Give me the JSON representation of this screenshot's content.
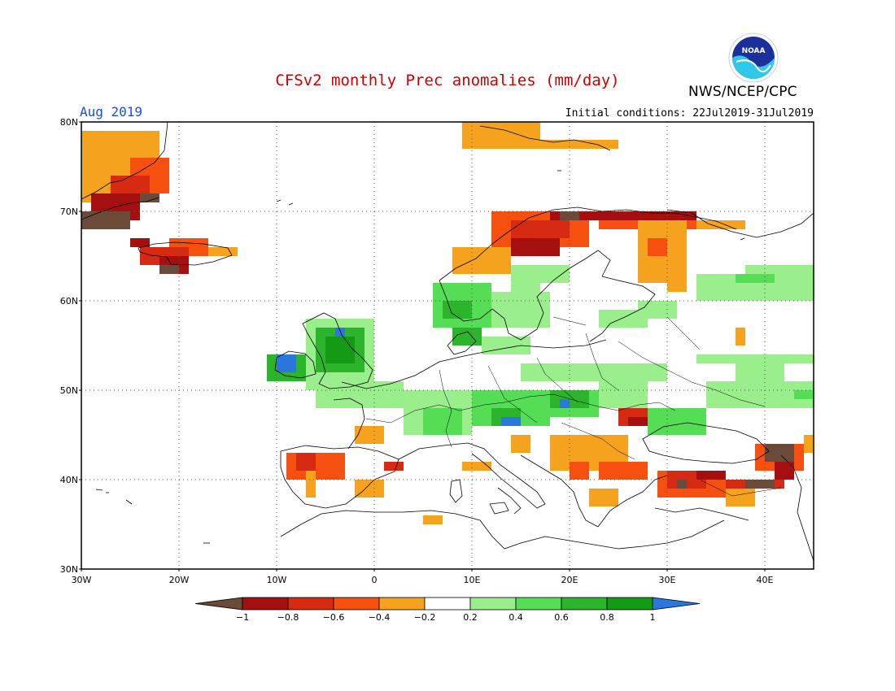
{
  "header": {
    "title": "CFSv2 monthly Prec anomalies (mm/day)",
    "agency": "NWS/NCEP/CPC",
    "logo_text": "NOAA",
    "month": "Aug 2019",
    "initial_conditions": "Initial conditions: 22Jul2019-31Jul2019"
  },
  "colors": {
    "title": "#cc0000",
    "month": "#1a4fe0",
    "frame": "#000000",
    "grid": "#555555",
    "coast": "#000000"
  },
  "map": {
    "lon_range": [
      -30,
      45
    ],
    "lat_range": [
      30,
      80
    ],
    "lat_ticks": [
      "30N",
      "40N",
      "50N",
      "60N",
      "70N",
      "80N"
    ],
    "lat_tick_values": [
      30,
      40,
      50,
      60,
      70,
      80
    ],
    "lon_ticks": [
      "30W",
      "20W",
      "10W",
      "0",
      "10E",
      "20E",
      "30E",
      "40E"
    ],
    "lon_tick_values": [
      -30,
      -20,
      -10,
      0,
      10,
      20,
      30,
      40
    ]
  },
  "colorbar": {
    "tick_labels": [
      "−1",
      "−0.8",
      "−0.6",
      "−0.4",
      "−0.2",
      "0.2",
      "0.4",
      "0.6",
      "0.8",
      "1"
    ],
    "colors": [
      "#6b4a3a",
      "#a50f0f",
      "#d62a12",
      "#f5500f",
      "#f5a21f",
      "#ffffff",
      "#9aee8c",
      "#55dd55",
      "#2cb42c",
      "#159a15",
      "#2a78dd"
    ]
  },
  "anomaly_cells": {
    "cell_size_deg": 1,
    "classes": {
      "-5": "#6b4a3a",
      "-4": "#a50f0f",
      "-3": "#d62a12",
      "-2": "#f5500f",
      "-1": "#f5a21f",
      "1": "#9aee8c",
      "2": "#55dd55",
      "3": "#2cb42c",
      "4": "#159a15",
      "5": "#2a78dd"
    },
    "rects": [
      {
        "lon": [
          -30,
          -22
        ],
        "lat": [
          71,
          79
        ],
        "c": -1
      },
      {
        "lon": [
          -25,
          -21
        ],
        "lat": [
          72,
          76
        ],
        "c": -2
      },
      {
        "lon": [
          -27,
          -23
        ],
        "lat": [
          71,
          74
        ],
        "c": -3
      },
      {
        "lon": [
          -29,
          -24
        ],
        "lat": [
          69,
          72
        ],
        "c": -4
      },
      {
        "lon": [
          -30,
          -25
        ],
        "lat": [
          68,
          70
        ],
        "c": -5
      },
      {
        "lon": [
          -24,
          -22
        ],
        "lat": [
          71,
          72
        ],
        "c": -5
      },
      {
        "lon": [
          -22,
          -14
        ],
        "lat": [
          65,
          66
        ],
        "c": -1
      },
      {
        "lon": [
          -21,
          -17
        ],
        "lat": [
          65,
          67
        ],
        "c": -2
      },
      {
        "lon": [
          -24,
          -19
        ],
        "lat": [
          64,
          66
        ],
        "c": -3
      },
      {
        "lon": [
          -22,
          -19
        ],
        "lat": [
          63,
          65
        ],
        "c": -4
      },
      {
        "lon": [
          -22,
          -20
        ],
        "lat": [
          63,
          64
        ],
        "c": -5
      },
      {
        "lon": [
          -25,
          -23
        ],
        "lat": [
          66,
          67
        ],
        "c": -4
      },
      {
        "lon": [
          9,
          17
        ],
        "lat": [
          77,
          80
        ],
        "c": -1
      },
      {
        "lon": [
          17,
          25
        ],
        "lat": [
          77,
          78
        ],
        "c": -1
      },
      {
        "lon": [
          8,
          14
        ],
        "lat": [
          63,
          66
        ],
        "c": -1
      },
      {
        "lon": [
          12,
          22
        ],
        "lat": [
          66,
          70
        ],
        "c": -2
      },
      {
        "lon": [
          14,
          20
        ],
        "lat": [
          67,
          69
        ],
        "c": -3
      },
      {
        "lon": [
          14,
          19
        ],
        "lat": [
          65,
          67
        ],
        "c": -4
      },
      {
        "lon": [
          18,
          22
        ],
        "lat": [
          69,
          70
        ],
        "c": -4
      },
      {
        "lon": [
          19,
          21
        ],
        "lat": [
          69,
          70
        ],
        "c": -5
      },
      {
        "lon": [
          21,
          33
        ],
        "lat": [
          69,
          70
        ],
        "c": -4
      },
      {
        "lon": [
          23,
          34
        ],
        "lat": [
          68,
          69
        ],
        "c": -2
      },
      {
        "lon": [
          27,
          32
        ],
        "lat": [
          62,
          69
        ],
        "c": -1
      },
      {
        "lon": [
          28,
          30
        ],
        "lat": [
          65,
          67
        ],
        "c": -2
      },
      {
        "lon": [
          33,
          38
        ],
        "lat": [
          68,
          69
        ],
        "c": -1
      },
      {
        "lon": [
          30,
          32
        ],
        "lat": [
          61,
          62
        ],
        "c": -1
      },
      {
        "lon": [
          6,
          12
        ],
        "lat": [
          57,
          62
        ],
        "c": 2
      },
      {
        "lon": [
          7,
          10
        ],
        "lat": [
          58,
          60
        ],
        "c": 3
      },
      {
        "lon": [
          12,
          18
        ],
        "lat": [
          57,
          61
        ],
        "c": 1
      },
      {
        "lon": [
          8,
          11
        ],
        "lat": [
          55,
          57
        ],
        "c": 3
      },
      {
        "lon": [
          11,
          16
        ],
        "lat": [
          54,
          56
        ],
        "c": 1
      },
      {
        "lon": [
          14,
          17
        ],
        "lat": [
          60,
          64
        ],
        "c": 1
      },
      {
        "lon": [
          17,
          20
        ],
        "lat": [
          62,
          64
        ],
        "c": 1
      },
      {
        "lon": [
          33,
          38
        ],
        "lat": [
          60,
          63
        ],
        "c": 1
      },
      {
        "lon": [
          38,
          45
        ],
        "lat": [
          60,
          64
        ],
        "c": 1
      },
      {
        "lon": [
          37,
          41
        ],
        "lat": [
          62,
          63
        ],
        "c": 2
      },
      {
        "lon": [
          23,
          28
        ],
        "lat": [
          57,
          59
        ],
        "c": 1
      },
      {
        "lon": [
          27,
          31
        ],
        "lat": [
          58,
          60
        ],
        "c": 1
      },
      {
        "lon": [
          -7,
          0
        ],
        "lat": [
          50,
          58
        ],
        "c": 1
      },
      {
        "lon": [
          -6,
          -1
        ],
        "lat": [
          52,
          57
        ],
        "c": 3
      },
      {
        "lon": [
          -5,
          -2
        ],
        "lat": [
          53,
          56
        ],
        "c": 4
      },
      {
        "lon": [
          -4,
          -3
        ],
        "lat": [
          56,
          57
        ],
        "c": 5
      },
      {
        "lon": [
          -11,
          -7
        ],
        "lat": [
          51,
          54
        ],
        "c": 3
      },
      {
        "lon": [
          -10,
          -8
        ],
        "lat": [
          52,
          54
        ],
        "c": 5
      },
      {
        "lon": [
          -6,
          3
        ],
        "lat": [
          48,
          51
        ],
        "c": 1
      },
      {
        "lon": [
          3,
          10
        ],
        "lat": [
          45,
          50
        ],
        "c": 1
      },
      {
        "lon": [
          5,
          9
        ],
        "lat": [
          45,
          48
        ],
        "c": 2
      },
      {
        "lon": [
          10,
          18
        ],
        "lat": [
          46,
          50
        ],
        "c": 2
      },
      {
        "lon": [
          12,
          15
        ],
        "lat": [
          46,
          48
        ],
        "c": 3
      },
      {
        "lon": [
          13,
          15
        ],
        "lat": [
          46,
          47
        ],
        "c": 5
      },
      {
        "lon": [
          15,
          23
        ],
        "lat": [
          47,
          50
        ],
        "c": 2
      },
      {
        "lon": [
          18,
          22
        ],
        "lat": [
          48,
          50
        ],
        "c": 3
      },
      {
        "lon": [
          19,
          20
        ],
        "lat": [
          48,
          49
        ],
        "c": 5
      },
      {
        "lon": [
          23,
          28
        ],
        "lat": [
          48,
          51
        ],
        "c": 1
      },
      {
        "lon": [
          28,
          34
        ],
        "lat": [
          45,
          48
        ],
        "c": 2
      },
      {
        "lon": [
          15,
          21
        ],
        "lat": [
          51,
          53
        ],
        "c": 1
      },
      {
        "lon": [
          21,
          30
        ],
        "lat": [
          51,
          53
        ],
        "c": 1
      },
      {
        "lon": [
          34,
          45
        ],
        "lat": [
          48,
          51
        ],
        "c": 1
      },
      {
        "lon": [
          37,
          42
        ],
        "lat": [
          51,
          53
        ],
        "c": 1
      },
      {
        "lon": [
          33,
          45
        ],
        "lat": [
          53,
          54
        ],
        "c": 1
      },
      {
        "lon": [
          43,
          45
        ],
        "lat": [
          49,
          50
        ],
        "c": 2
      },
      {
        "lon": [
          -2,
          1
        ],
        "lat": [
          44,
          46
        ],
        "c": -1
      },
      {
        "lon": [
          -9,
          -3
        ],
        "lat": [
          40,
          43
        ],
        "c": -2
      },
      {
        "lon": [
          -7,
          -6
        ],
        "lat": [
          38,
          42
        ],
        "c": -1
      },
      {
        "lon": [
          -8,
          -6
        ],
        "lat": [
          41,
          43
        ],
        "c": -3
      },
      {
        "lon": [
          -2,
          1
        ],
        "lat": [
          38,
          40
        ],
        "c": -1
      },
      {
        "lon": [
          1,
          3
        ],
        "lat": [
          41,
          42
        ],
        "c": -3
      },
      {
        "lon": [
          5,
          7
        ],
        "lat": [
          35,
          36
        ],
        "c": -1
      },
      {
        "lon": [
          9,
          12
        ],
        "lat": [
          41,
          42
        ],
        "c": -1
      },
      {
        "lon": [
          14,
          16
        ],
        "lat": [
          43,
          45
        ],
        "c": -1
      },
      {
        "lon": [
          18,
          26
        ],
        "lat": [
          41,
          45
        ],
        "c": -1
      },
      {
        "lon": [
          20,
          22
        ],
        "lat": [
          40,
          42
        ],
        "c": -2
      },
      {
        "lon": [
          23,
          28
        ],
        "lat": [
          40,
          42
        ],
        "c": -2
      },
      {
        "lon": [
          25,
          28
        ],
        "lat": [
          46,
          48
        ],
        "c": -3
      },
      {
        "lon": [
          26,
          28
        ],
        "lat": [
          46,
          47
        ],
        "c": -4
      },
      {
        "lon": [
          22,
          25
        ],
        "lat": [
          37,
          39
        ],
        "c": -1
      },
      {
        "lon": [
          29,
          36
        ],
        "lat": [
          38,
          41
        ],
        "c": -2
      },
      {
        "lon": [
          30,
          34
        ],
        "lat": [
          39,
          41
        ],
        "c": -3
      },
      {
        "lon": [
          31,
          32
        ],
        "lat": [
          39,
          40
        ],
        "c": -5
      },
      {
        "lon": [
          33,
          36
        ],
        "lat": [
          40,
          41
        ],
        "c": -4
      },
      {
        "lon": [
          36,
          42
        ],
        "lat": [
          39,
          40
        ],
        "c": -3
      },
      {
        "lon": [
          38,
          41
        ],
        "lat": [
          39,
          40
        ],
        "c": -5
      },
      {
        "lon": [
          39,
          44
        ],
        "lat": [
          41,
          44
        ],
        "c": -2
      },
      {
        "lon": [
          40,
          43
        ],
        "lat": [
          42,
          44
        ],
        "c": -5
      },
      {
        "lon": [
          41,
          43
        ],
        "lat": [
          40,
          42
        ],
        "c": -4
      },
      {
        "lon": [
          36,
          39
        ],
        "lat": [
          37,
          39
        ],
        "c": -1
      },
      {
        "lon": [
          37,
          38
        ],
        "lat": [
          55,
          57
        ],
        "c": -1
      },
      {
        "lon": [
          44,
          45
        ],
        "lat": [
          43,
          45
        ],
        "c": -1
      }
    ]
  }
}
